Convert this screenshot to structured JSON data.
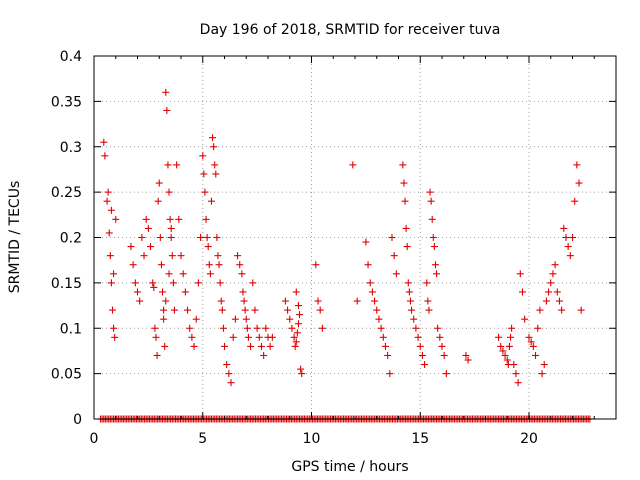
{
  "chart_data": {
    "type": "scatter",
    "title": "Day 196 of 2018, SRMTID for receiver tuva",
    "xlabel": "GPS time / hours",
    "ylabel": "SRMTID / TECUs",
    "xlim": [
      0,
      24
    ],
    "ylim": [
      0,
      0.4
    ],
    "xticks": [
      0,
      5,
      10,
      15,
      20
    ],
    "xtick_labels": [
      "0",
      "5",
      "10",
      "15",
      "20"
    ],
    "yticks": [
      0,
      0.05,
      0.1,
      0.15,
      0.2,
      0.25,
      0.3,
      0.35,
      0.4
    ],
    "ytick_labels": [
      "0",
      "0.05",
      "0.1",
      "0.15",
      "0.2",
      "0.25",
      "0.3",
      "0.35",
      "0.4"
    ],
    "grid": true,
    "marker": "+",
    "color": "#e00000",
    "series": [
      {
        "x": [
          0.45,
          0.5,
          0.6,
          0.7,
          0.75,
          0.8,
          0.85,
          0.9,
          0.95,
          1.0,
          0.65,
          0.8,
          0.9,
          1.7,
          1.8,
          1.9,
          2.0,
          2.1,
          2.2,
          2.3,
          2.4,
          2.5,
          2.6,
          2.7,
          2.75,
          2.8,
          2.85,
          2.9,
          2.95,
          3.0,
          3.05,
          3.1,
          3.15,
          3.2,
          3.25,
          3.3,
          3.35,
          3.4,
          3.45,
          3.5,
          3.55,
          3.6,
          3.65,
          3.7,
          3.2,
          3.3,
          3.45,
          3.55,
          3.8,
          3.9,
          4.0,
          4.1,
          4.2,
          4.3,
          4.4,
          4.5,
          4.6,
          4.7,
          4.8,
          4.9,
          5.0,
          5.05,
          5.1,
          5.15,
          5.2,
          5.25,
          5.3,
          5.35,
          5.4,
          5.45,
          5.5,
          5.55,
          5.6,
          5.65,
          5.7,
          5.75,
          5.8,
          5.85,
          5.9,
          5.95,
          6.0,
          6.1,
          6.2,
          6.3,
          6.4,
          6.5,
          6.6,
          6.7,
          6.8,
          6.85,
          6.9,
          6.95,
          7.0,
          7.05,
          7.1,
          7.2,
          7.3,
          7.4,
          7.5,
          7.6,
          7.7,
          7.8,
          7.9,
          8.0,
          8.1,
          8.2,
          8.8,
          8.9,
          9.0,
          9.1,
          9.2,
          9.25,
          9.3,
          9.35,
          9.4,
          9.45,
          9.5,
          9.55,
          9.3,
          9.4,
          10.2,
          10.3,
          10.4,
          10.5,
          11.9,
          12.1,
          12.5,
          12.6,
          12.7,
          12.8,
          12.9,
          13.0,
          13.1,
          13.2,
          13.3,
          13.4,
          13.5,
          13.6,
          13.7,
          13.8,
          13.9,
          14.2,
          14.25,
          14.3,
          14.35,
          14.4,
          14.45,
          14.5,
          14.55,
          14.6,
          14.7,
          14.8,
          14.9,
          15.0,
          15.1,
          15.2,
          15.3,
          15.35,
          15.4,
          15.45,
          15.5,
          15.55,
          15.6,
          15.65,
          15.7,
          15.75,
          15.8,
          15.9,
          16.0,
          16.1,
          16.2,
          17.1,
          17.2,
          18.6,
          18.7,
          18.8,
          18.9,
          19.0,
          19.05,
          19.1,
          19.15,
          19.2,
          19.3,
          19.4,
          19.5,
          19.6,
          19.7,
          19.8,
          20.0,
          20.1,
          20.2,
          20.3,
          20.4,
          20.5,
          20.6,
          20.7,
          20.8,
          20.9,
          21.0,
          21.1,
          21.2,
          21.3,
          21.4,
          21.5,
          21.6,
          21.7,
          21.8,
          21.9,
          22.0,
          22.1,
          22.2,
          22.3,
          22.4
        ],
        "y": [
          0.305,
          0.29,
          0.24,
          0.205,
          0.18,
          0.15,
          0.12,
          0.1,
          0.09,
          0.22,
          0.25,
          0.23,
          0.16,
          0.19,
          0.17,
          0.15,
          0.14,
          0.13,
          0.2,
          0.18,
          0.22,
          0.21,
          0.19,
          0.15,
          0.145,
          0.1,
          0.09,
          0.07,
          0.24,
          0.26,
          0.2,
          0.17,
          0.14,
          0.12,
          0.08,
          0.36,
          0.34,
          0.28,
          0.25,
          0.22,
          0.2,
          0.18,
          0.15,
          0.12,
          0.11,
          0.13,
          0.16,
          0.21,
          0.28,
          0.22,
          0.18,
          0.16,
          0.14,
          0.12,
          0.1,
          0.09,
          0.08,
          0.11,
          0.15,
          0.2,
          0.29,
          0.27,
          0.25,
          0.22,
          0.2,
          0.19,
          0.17,
          0.16,
          0.24,
          0.31,
          0.3,
          0.28,
          0.27,
          0.2,
          0.18,
          0.17,
          0.15,
          0.13,
          0.12,
          0.1,
          0.08,
          0.06,
          0.05,
          0.04,
          0.09,
          0.11,
          0.18,
          0.17,
          0.16,
          0.14,
          0.13,
          0.12,
          0.11,
          0.1,
          0.09,
          0.08,
          0.15,
          0.12,
          0.1,
          0.09,
          0.08,
          0.07,
          0.1,
          0.09,
          0.08,
          0.09,
          0.13,
          0.12,
          0.11,
          0.1,
          0.09,
          0.08,
          0.085,
          0.095,
          0.105,
          0.115,
          0.055,
          0.05,
          0.14,
          0.125,
          0.17,
          0.13,
          0.12,
          0.1,
          0.28,
          0.13,
          0.195,
          0.17,
          0.15,
          0.14,
          0.13,
          0.12,
          0.11,
          0.1,
          0.09,
          0.08,
          0.07,
          0.05,
          0.2,
          0.18,
          0.16,
          0.28,
          0.26,
          0.24,
          0.21,
          0.19,
          0.15,
          0.14,
          0.13,
          0.12,
          0.11,
          0.1,
          0.09,
          0.08,
          0.07,
          0.06,
          0.15,
          0.13,
          0.12,
          0.25,
          0.24,
          0.22,
          0.2,
          0.19,
          0.17,
          0.16,
          0.1,
          0.09,
          0.08,
          0.07,
          0.05,
          0.07,
          0.065,
          0.09,
          0.08,
          0.075,
          0.07,
          0.065,
          0.06,
          0.08,
          0.09,
          0.1,
          0.06,
          0.05,
          0.04,
          0.16,
          0.14,
          0.11,
          0.09,
          0.085,
          0.08,
          0.07,
          0.1,
          0.12,
          0.05,
          0.06,
          0.13,
          0.14,
          0.15,
          0.16,
          0.17,
          0.14,
          0.13,
          0.12,
          0.21,
          0.2,
          0.19,
          0.18,
          0.2,
          0.24,
          0.28,
          0.26,
          0.12
        ]
      },
      {
        "name": "",
        "x_range": [
          0.3,
          22.8
        ],
        "y": 0
      }
    ]
  }
}
